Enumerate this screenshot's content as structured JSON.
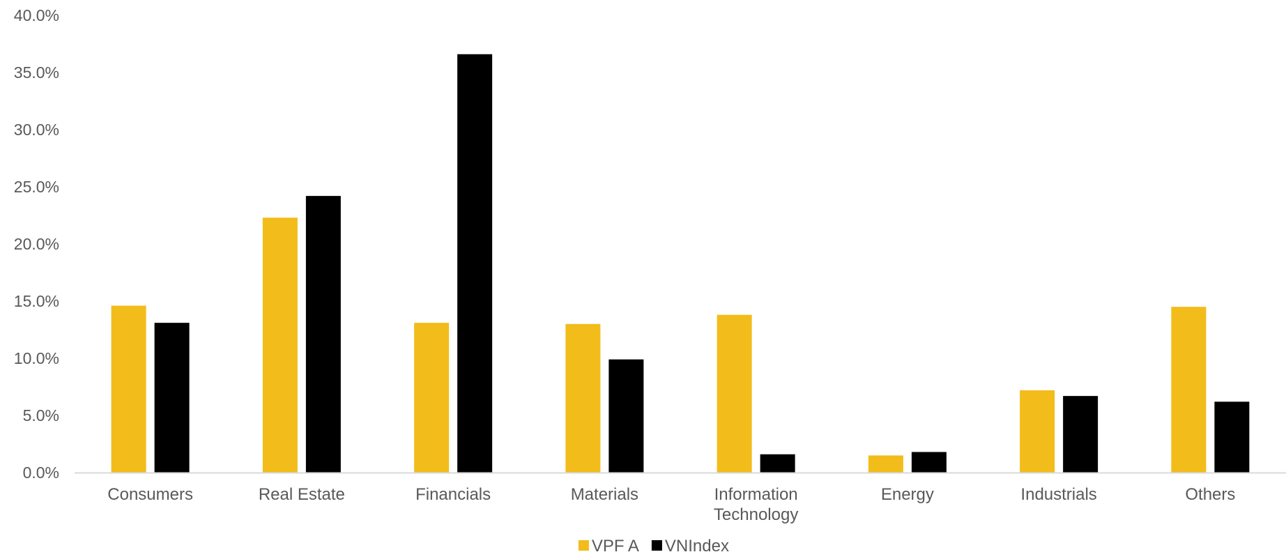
{
  "chart_data": {
    "type": "bar",
    "categories": [
      "Consumers",
      "Real Estate",
      "Financials",
      "Materials",
      "Information Technology",
      "Energy",
      "Industrials",
      "Others"
    ],
    "category_lines": [
      [
        "Consumers"
      ],
      [
        "Real Estate"
      ],
      [
        "Financials"
      ],
      [
        "Materials"
      ],
      [
        "Information",
        "Technology"
      ],
      [
        "Energy"
      ],
      [
        "Industrials"
      ],
      [
        "Others"
      ]
    ],
    "series": [
      {
        "name": "VPF A",
        "color": "#F2BC1A",
        "values": [
          14.6,
          22.3,
          13.1,
          13.0,
          13.8,
          1.5,
          7.2,
          14.5
        ]
      },
      {
        "name": "VNIndex",
        "color": "#000000",
        "values": [
          13.1,
          24.2,
          36.6,
          9.9,
          1.6,
          1.8,
          6.7,
          6.2
        ]
      }
    ],
    "title": "",
    "xlabel": "",
    "ylabel": "",
    "ylim": [
      0,
      40
    ],
    "yticks": [
      0,
      5,
      10,
      15,
      20,
      25,
      30,
      35,
      40
    ],
    "ytick_labels": [
      "0.0%",
      "5.0%",
      "10.0%",
      "15.0%",
      "20.0%",
      "25.0%",
      "30.0%",
      "35.0%",
      "40.0%"
    ],
    "grid": false,
    "legend_position": "bottom",
    "axis_color": "#D9D9D9",
    "label_color": "#595959"
  }
}
